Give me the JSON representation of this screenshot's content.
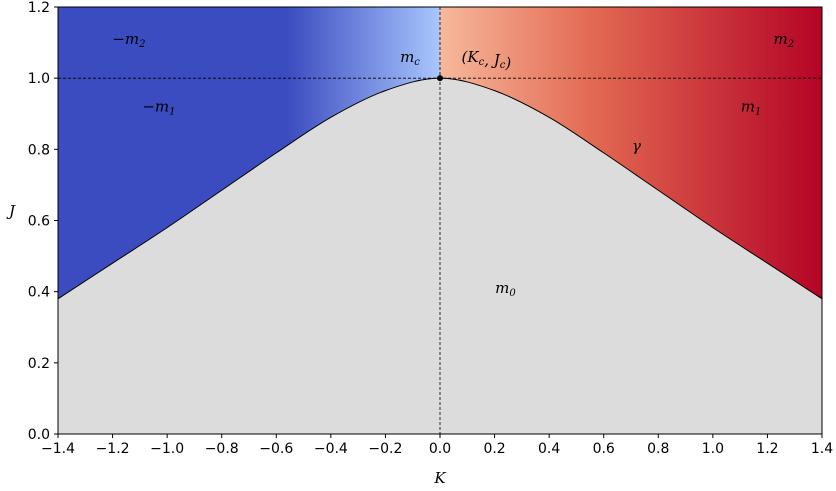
{
  "chart_data": {
    "type": "area",
    "title": "",
    "xlabel": "K",
    "ylabel": "J",
    "xlim": [
      -1.4,
      1.4
    ],
    "ylim": [
      0.0,
      1.2
    ],
    "xticks": [
      "−1.4",
      "−1.2",
      "−1.0",
      "−0.8",
      "−0.6",
      "−0.4",
      "−0.2",
      "0.0",
      "0.2",
      "0.4",
      "0.6",
      "0.8",
      "1.0",
      "1.2",
      "1.4"
    ],
    "yticks": [
      "0.0",
      "0.2",
      "0.4",
      "0.6",
      "0.8",
      "1.0",
      "1.2"
    ],
    "grid": false,
    "critical_point": {
      "x": 0.0,
      "y": 1.0,
      "label": "(K_c, J_c)"
    },
    "reference_lines": {
      "horizontal_y": 1.0,
      "vertical_x": 0.0,
      "style": "dashed"
    },
    "boundary_curve": {
      "name": "γ",
      "x": [
        -1.4,
        -1.2,
        -1.0,
        -0.8,
        -0.6,
        -0.4,
        -0.2,
        0.0,
        0.2,
        0.4,
        0.6,
        0.8,
        1.0,
        1.2,
        1.4
      ],
      "y": [
        0.38,
        0.48,
        0.58,
        0.685,
        0.79,
        0.89,
        0.965,
        1.0,
        0.965,
        0.89,
        0.79,
        0.685,
        0.58,
        0.48,
        0.38
      ]
    },
    "regions": [
      {
        "label": "m_0",
        "x": 0.24,
        "y": 0.41
      },
      {
        "label": "m_c",
        "x": -0.11,
        "y": 1.06
      },
      {
        "label": "m_1",
        "x": 1.14,
        "y": 0.92
      },
      {
        "label": "m_2",
        "x": 1.26,
        "y": 1.11
      },
      {
        "label": "−m_1",
        "x": -1.03,
        "y": 0.92
      },
      {
        "label": "−m_2",
        "x": -1.14,
        "y": 1.11
      },
      {
        "label": "γ",
        "x": 0.72,
        "y": 0.81
      }
    ],
    "colors": {
      "lower_region": "#dcdcdc",
      "negative_far": "#3b4cc0",
      "negative_near": "#a9c6fd",
      "positive_near": "#f7b89c",
      "positive_far": "#b40426"
    }
  }
}
